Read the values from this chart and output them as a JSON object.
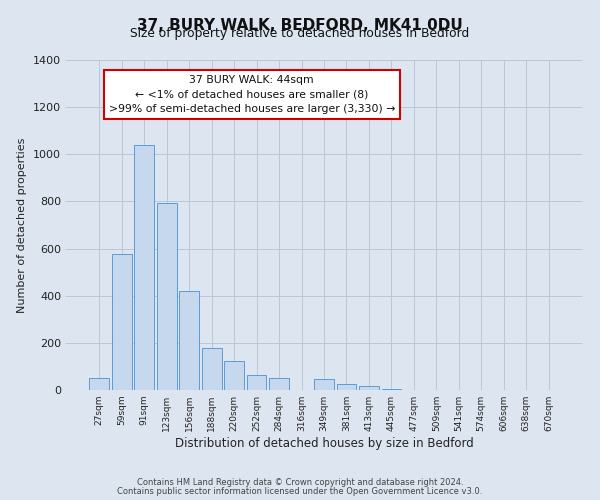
{
  "title": "37, BURY WALK, BEDFORD, MK41 0DU",
  "subtitle": "Size of property relative to detached houses in Bedford",
  "xlabel": "Distribution of detached houses by size in Bedford",
  "ylabel": "Number of detached properties",
  "bar_color": "#c5d8ed",
  "bar_edge_color": "#5b9bd5",
  "background_color": "#dde6f0",
  "fig_background_color": "#dde6f0",
  "annotation_box_color": "#ffffff",
  "annotation_border_color": "#cc0000",
  "grid_color": "#b8c8d8",
  "categories": [
    "27sqm",
    "59sqm",
    "91sqm",
    "123sqm",
    "156sqm",
    "188sqm",
    "220sqm",
    "252sqm",
    "284sqm",
    "316sqm",
    "349sqm",
    "381sqm",
    "413sqm",
    "445sqm",
    "477sqm",
    "509sqm",
    "541sqm",
    "574sqm",
    "606sqm",
    "638sqm",
    "670sqm"
  ],
  "values": [
    50,
    575,
    1040,
    795,
    420,
    180,
    125,
    63,
    50,
    0,
    47,
    25,
    18,
    5,
    0,
    0,
    0,
    0,
    0,
    0,
    0
  ],
  "ylim": [
    0,
    1400
  ],
  "yticks": [
    0,
    200,
    400,
    600,
    800,
    1000,
    1200,
    1400
  ],
  "annotation_line1": "37 BURY WALK: 44sqm",
  "annotation_line2": "← <1% of detached houses are smaller (8)",
  "annotation_line3": ">99% of semi-detached houses are larger (3,330) →",
  "footer1": "Contains HM Land Registry data © Crown copyright and database right 2024.",
  "footer2": "Contains public sector information licensed under the Open Government Licence v3.0."
}
